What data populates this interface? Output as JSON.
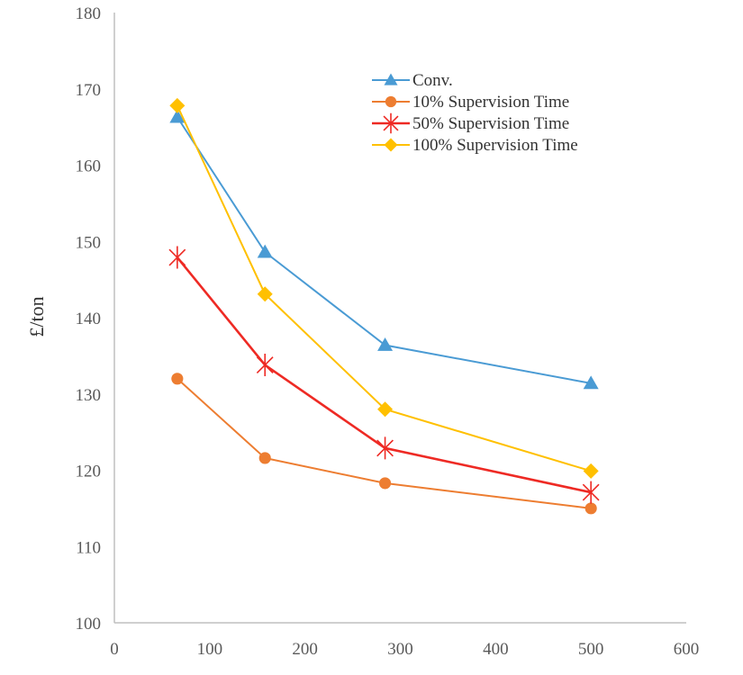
{
  "chart_data": {
    "type": "line",
    "title": "",
    "xlabel": "",
    "ylabel": "£/ton",
    "xlim": [
      0,
      600
    ],
    "ylim": [
      100,
      180
    ],
    "xticks": [
      0,
      100,
      200,
      300,
      400,
      500,
      600
    ],
    "yticks": [
      100,
      110,
      120,
      130,
      140,
      150,
      160,
      170,
      180
    ],
    "grid": false,
    "legend_position": "top-right",
    "series": [
      {
        "name": "Conv.",
        "color": "#4a9bd4",
        "marker": "triangle",
        "x": [
          66,
          158,
          284,
          500
        ],
        "y": [
          166.3,
          148.6,
          136.4,
          131.4
        ]
      },
      {
        "name": "10% Supervision Time",
        "color": "#ed7d31",
        "marker": "circle",
        "x": [
          66,
          158,
          284,
          500
        ],
        "y": [
          132.0,
          121.6,
          118.3,
          115.0
        ]
      },
      {
        "name": "50% Supervision Time",
        "color": "#ee2a24",
        "marker": "asterisk",
        "x": [
          66,
          158,
          284,
          500
        ],
        "y": [
          147.9,
          133.8,
          122.9,
          117.1
        ]
      },
      {
        "name": "100% Supervision Time",
        "color": "#ffc000",
        "marker": "diamond",
        "x": [
          66,
          158,
          284,
          500
        ],
        "y": [
          167.8,
          143.1,
          128.0,
          119.9
        ]
      }
    ]
  }
}
